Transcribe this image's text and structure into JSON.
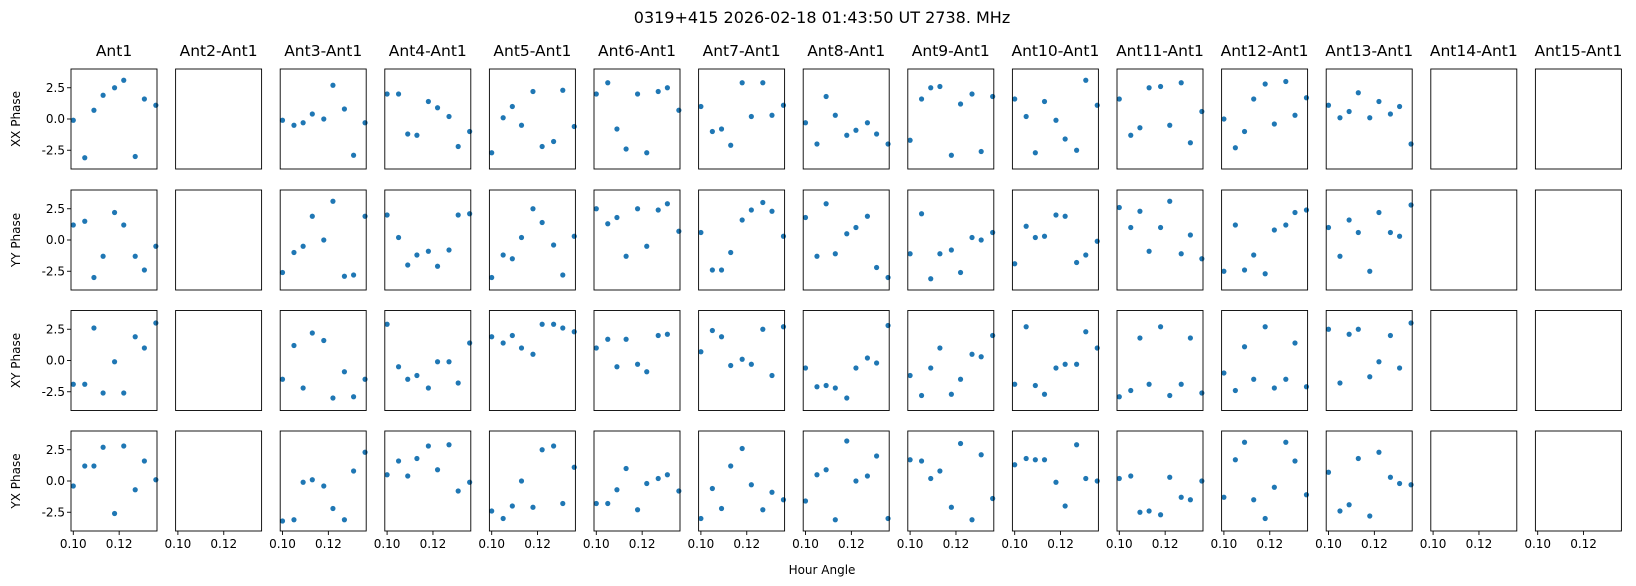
{
  "figure": {
    "suptitle": "0319+415  2026-02-18 01:43:50 UT  2738. MHz",
    "xlabel": "Hour Angle"
  },
  "chart_data": {
    "type": "scatter",
    "title": "0319+415  2026-02-18 01:43:50 UT  2738. MHz",
    "xlabel": "Hour Angle",
    "columns": [
      "Ant1",
      "Ant2-Ant1",
      "Ant3-Ant1",
      "Ant4-Ant1",
      "Ant5-Ant1",
      "Ant6-Ant1",
      "Ant7-Ant1",
      "Ant8-Ant1",
      "Ant9-Ant1",
      "Ant10-Ant1",
      "Ant11-Ant1",
      "Ant12-Ant1",
      "Ant13-Ant1",
      "Ant14-Ant1",
      "Ant15-Ant1"
    ],
    "rows": [
      "XX Phase",
      "YY Phase",
      "XY Phase",
      "YX Phase"
    ],
    "xlim": [
      0.099,
      0.1365
    ],
    "ylim": [
      -4.0,
      4.0
    ],
    "xticks": [
      0.1,
      0.12
    ],
    "xtick_labels": [
      "0.10",
      "0.12"
    ],
    "yticks": [
      2.5,
      0.0,
      -2.5
    ],
    "ytick_labels": [
      "2.5",
      "0.0",
      "-2.5"
    ],
    "marker_color": "#1f77b4",
    "x": [
      0.1,
      0.105,
      0.109,
      0.113,
      0.118,
      0.122,
      0.127,
      0.131,
      0.136
    ],
    "panels": [
      [
        [
          -0.1,
          -3.1,
          0.7,
          1.9,
          2.5,
          3.1,
          -3.0,
          1.6,
          1.1
        ],
        [],
        [
          -0.1,
          -0.5,
          -0.3,
          0.4,
          0.0,
          2.7,
          0.8,
          -2.9,
          -0.3
        ],
        [
          2.0,
          2.0,
          -1.2,
          -1.3,
          1.4,
          0.9,
          0.2,
          -2.2,
          -1.0
        ],
        [
          -2.7,
          0.1,
          1.0,
          -0.5,
          2.2,
          -2.2,
          -1.8,
          2.3,
          -0.6
        ],
        [
          2.0,
          2.9,
          -0.8,
          -2.4,
          2.0,
          -2.7,
          2.2,
          2.5,
          0.7
        ],
        [
          1.0,
          -1.0,
          -0.8,
          -2.1,
          2.9,
          0.2,
          2.9,
          0.3,
          1.1
        ],
        [
          -0.3,
          -2.0,
          1.8,
          0.3,
          -1.3,
          -0.9,
          -0.3,
          -1.2,
          -2.0
        ],
        [
          -1.7,
          1.6,
          2.5,
          2.6,
          -2.9,
          1.2,
          2.0,
          -2.6,
          1.8
        ],
        [
          1.6,
          0.2,
          -2.7,
          1.4,
          -0.1,
          -1.6,
          -2.5,
          3.1,
          1.1
        ],
        [
          1.6,
          -1.3,
          -0.7,
          2.5,
          2.6,
          -0.5,
          2.9,
          -1.9,
          0.6
        ],
        [
          0.0,
          -2.3,
          -1.0,
          1.6,
          2.8,
          -0.4,
          3.0,
          0.3,
          1.7
        ],
        [
          1.1,
          0.1,
          0.6,
          2.1,
          0.1,
          1.4,
          0.4,
          1.0,
          -2.0
        ],
        [],
        []
      ],
      [
        [
          1.2,
          1.5,
          -3.0,
          -1.3,
          2.2,
          1.2,
          -1.3,
          -2.4,
          -0.5
        ],
        [],
        [
          -2.6,
          -1.0,
          -0.5,
          1.9,
          0.0,
          3.1,
          -2.9,
          -2.8,
          1.9
        ],
        [
          2.0,
          0.2,
          -2.0,
          -1.2,
          -0.9,
          -2.1,
          -0.8,
          2.0,
          2.1
        ],
        [
          -3.0,
          -1.2,
          -1.5,
          0.2,
          2.5,
          1.4,
          -0.4,
          -2.8,
          0.3
        ],
        [
          2.5,
          1.3,
          1.8,
          -1.3,
          2.5,
          -0.5,
          2.4,
          2.9,
          0.7
        ],
        [
          0.6,
          -2.4,
          -2.4,
          -1.0,
          1.6,
          2.4,
          3.0,
          2.3,
          0.3
        ],
        [
          1.8,
          -1.3,
          2.9,
          -1.1,
          0.5,
          1.0,
          1.9,
          -2.2,
          -3.0
        ],
        [
          -1.1,
          2.1,
          -3.1,
          -1.1,
          -0.8,
          -2.6,
          0.2,
          0.0,
          0.6
        ],
        [
          -1.9,
          1.1,
          0.2,
          0.3,
          2.0,
          1.9,
          -1.8,
          -1.2,
          -0.1
        ],
        [
          2.6,
          1.0,
          2.3,
          -0.9,
          1.0,
          3.1,
          -1.1,
          0.4,
          -1.5
        ],
        [
          -2.5,
          1.2,
          -2.4,
          -1.2,
          -2.7,
          0.8,
          1.2,
          2.2,
          2.4
        ],
        [
          1.0,
          -1.3,
          1.6,
          0.6,
          -2.5,
          2.2,
          0.6,
          0.3,
          2.8
        ],
        [],
        []
      ],
      [
        [
          -1.9,
          -1.9,
          2.6,
          -2.6,
          -0.1,
          -2.6,
          1.9,
          1.0,
          3.0
        ],
        [],
        [
          -1.5,
          1.2,
          -2.2,
          2.2,
          1.6,
          -3.0,
          -0.9,
          -2.9,
          -1.5
        ],
        [
          2.9,
          -0.5,
          -1.5,
          -1.2,
          -2.2,
          -0.1,
          -0.1,
          -1.8,
          1.4
        ],
        [
          1.9,
          1.4,
          2.0,
          1.0,
          0.5,
          2.9,
          2.9,
          2.6,
          2.3
        ],
        [
          1.0,
          1.7,
          -0.5,
          1.7,
          -0.3,
          -0.9,
          2.0,
          2.1,
          -4.1
        ],
        [
          0.7,
          2.4,
          1.9,
          -0.4,
          0.1,
          -0.3,
          2.5,
          -1.2,
          2.7
        ],
        [
          -0.6,
          -2.1,
          -2.0,
          -2.2,
          -3.0,
          -0.6,
          0.2,
          -0.2,
          2.8
        ],
        [
          -1.2,
          -2.8,
          -0.6,
          1.0,
          -2.7,
          -1.5,
          0.5,
          0.3,
          2.0
        ],
        [
          -1.9,
          2.7,
          -2.0,
          -2.7,
          -0.6,
          -0.3,
          -0.3,
          2.3,
          1.0
        ],
        [
          -2.9,
          -2.4,
          1.8,
          -1.9,
          2.7,
          -2.8,
          -1.9,
          1.8,
          -2.6
        ],
        [
          -1.0,
          -2.4,
          1.1,
          -1.5,
          2.7,
          -2.2,
          -1.5,
          1.4,
          -2.1
        ],
        [
          2.5,
          -1.8,
          2.1,
          2.5,
          -1.3,
          -0.1,
          2.0,
          -0.6,
          3.0
        ],
        [],
        []
      ],
      [
        [
          -0.4,
          1.2,
          1.2,
          2.7,
          -2.6,
          2.8,
          -0.7,
          1.6,
          0.1
        ],
        [],
        [
          -3.2,
          -3.1,
          -0.1,
          0.1,
          -0.4,
          -2.2,
          -3.1,
          0.8,
          2.3
        ],
        [
          0.5,
          1.6,
          0.4,
          1.8,
          2.8,
          0.9,
          2.9,
          -0.8,
          -0.1
        ],
        [
          -2.4,
          -3.0,
          -2.0,
          0.0,
          -2.1,
          2.5,
          2.8,
          -1.8,
          1.1
        ],
        [
          -1.8,
          -1.8,
          -0.7,
          1.0,
          -2.3,
          -0.2,
          0.2,
          0.5,
          -0.8
        ],
        [
          -3.0,
          -0.6,
          -2.2,
          1.2,
          2.6,
          -0.3,
          -2.3,
          -0.9,
          -1.5
        ],
        [
          -1.6,
          0.5,
          0.9,
          -3.1,
          3.2,
          0.0,
          0.4,
          2.0,
          -3.0
        ],
        [
          1.7,
          1.6,
          0.2,
          0.8,
          -2.1,
          3.0,
          -3.1,
          2.1,
          -1.4
        ],
        [
          1.3,
          1.8,
          1.7,
          1.7,
          -0.1,
          -2.0,
          2.9,
          0.2,
          0.0
        ],
        [
          0.2,
          0.4,
          -2.5,
          -2.4,
          -2.7,
          0.3,
          -1.3,
          -1.5,
          0.0
        ],
        [
          -1.3,
          1.7,
          3.1,
          -1.5,
          -3.0,
          -0.5,
          3.1,
          1.6,
          -1.1
        ],
        [
          0.7,
          -2.4,
          -1.9,
          1.8,
          -2.8,
          2.3,
          0.3,
          -0.2,
          -0.3
        ],
        [],
        []
      ]
    ]
  }
}
